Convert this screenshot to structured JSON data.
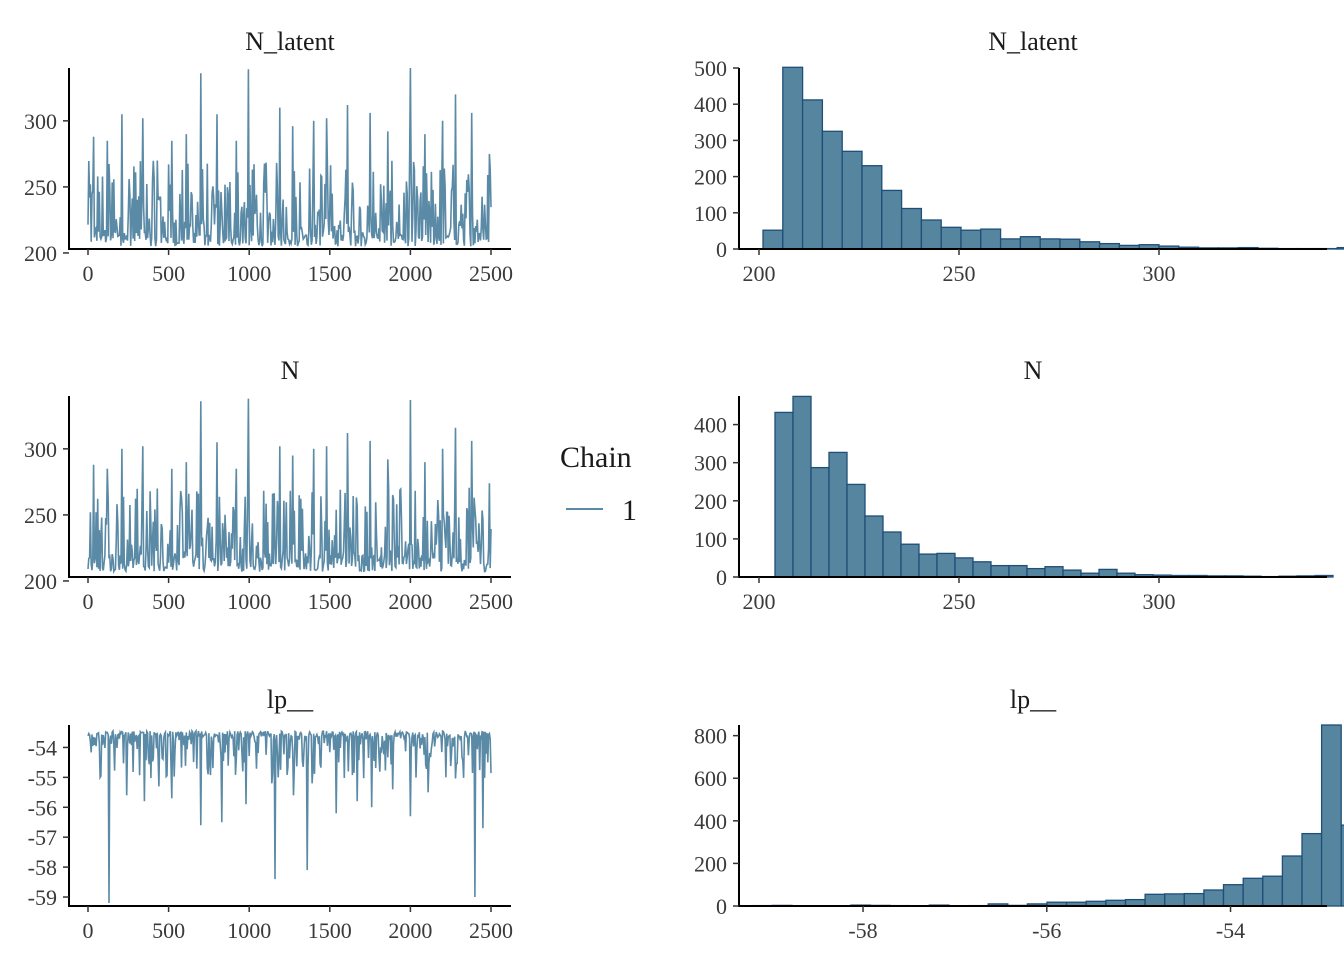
{
  "legend": {
    "title": "Chain",
    "items": [
      {
        "label": "1",
        "color": "#5b8aa6"
      }
    ]
  },
  "colors": {
    "trace": "#5b8aa6",
    "bar_fill": "#55859f",
    "bar_stroke": "#1f4e79",
    "axis": "#000000"
  },
  "chart_data": [
    {
      "id": "trace-n-latent",
      "type": "line",
      "title": "N_latent",
      "xlim": [
        0,
        2500
      ],
      "ylim": [
        203,
        340
      ],
      "xticks": [
        0,
        500,
        1000,
        1500,
        2000,
        2500
      ],
      "yticks": [
        200,
        250,
        300
      ],
      "series": [
        {
          "iterations": 2500,
          "baseline": 205,
          "spikes": [
            [
              15,
              252
            ],
            [
              35,
              288
            ],
            [
              120,
              285
            ],
            [
              210,
              305
            ],
            [
              340,
              302
            ],
            [
              430,
              270
            ],
            [
              520,
              285
            ],
            [
              610,
              290
            ],
            [
              700,
              336
            ],
            [
              800,
              305
            ],
            [
              920,
              285
            ],
            [
              995,
              339
            ],
            [
              1190,
              310
            ],
            [
              1270,
              296
            ],
            [
              1400,
              300
            ],
            [
              1480,
              302
            ],
            [
              1610,
              312
            ],
            [
              1750,
              306
            ],
            [
              1860,
              292
            ],
            [
              2000,
              340
            ],
            [
              2090,
              290
            ],
            [
              2200,
              300
            ],
            [
              2280,
              320
            ],
            [
              2380,
              306
            ],
            [
              2490,
              275
            ]
          ]
        }
      ]
    },
    {
      "id": "hist-n-latent",
      "type": "bar",
      "title": "N_latent",
      "xlim": [
        195,
        342
      ],
      "ylim": [
        0,
        500
      ],
      "xticks": [
        200,
        250,
        300
      ],
      "yticks": [
        0,
        100,
        200,
        300,
        400,
        500
      ],
      "bin_start": 201,
      "bin_width": 4.95,
      "values": [
        52,
        502,
        412,
        325,
        270,
        230,
        162,
        112,
        80,
        60,
        52,
        55,
        28,
        34,
        28,
        27,
        20,
        15,
        10,
        12,
        8,
        5,
        3,
        3,
        4,
        2,
        1,
        1,
        1,
        4
      ]
    },
    {
      "id": "trace-n",
      "type": "line",
      "title": "N",
      "xlim": [
        0,
        2500
      ],
      "ylim": [
        203,
        340
      ],
      "xticks": [
        0,
        500,
        1000,
        1500,
        2000,
        2500
      ],
      "yticks": [
        200,
        250,
        300
      ],
      "series": [
        {
          "iterations": 2500,
          "baseline": 207,
          "spikes": [
            [
              15,
              252
            ],
            [
              35,
              288
            ],
            [
              120,
              285
            ],
            [
              210,
              300
            ],
            [
              340,
              302
            ],
            [
              430,
              270
            ],
            [
              520,
              285
            ],
            [
              610,
              290
            ],
            [
              700,
              336
            ],
            [
              800,
              305
            ],
            [
              920,
              285
            ],
            [
              995,
              338
            ],
            [
              1190,
              302
            ],
            [
              1270,
              295
            ],
            [
              1400,
              300
            ],
            [
              1480,
              302
            ],
            [
              1610,
              312
            ],
            [
              1750,
              306
            ],
            [
              1860,
              292
            ],
            [
              2000,
              337
            ],
            [
              2090,
              290
            ],
            [
              2200,
              300
            ],
            [
              2280,
              316
            ],
            [
              2380,
              306
            ],
            [
              2490,
              274
            ]
          ]
        }
      ]
    },
    {
      "id": "hist-n",
      "type": "bar",
      "title": "N",
      "xlim": [
        195,
        342
      ],
      "ylim": [
        0,
        475
      ],
      "xticks": [
        200,
        250,
        300
      ],
      "yticks": [
        0,
        100,
        200,
        300,
        400
      ],
      "bin_start": 204,
      "bin_width": 4.5,
      "values": [
        432,
        474,
        287,
        327,
        243,
        160,
        118,
        86,
        60,
        62,
        50,
        40,
        30,
        30,
        22,
        27,
        18,
        10,
        20,
        10,
        6,
        5,
        4,
        4,
        3,
        3,
        2,
        1,
        2,
        3,
        4
      ]
    },
    {
      "id": "trace-lp",
      "type": "line",
      "title": "lp__",
      "xlim": [
        0,
        2500
      ],
      "ylim": [
        -59.3,
        -53.25
      ],
      "xticks": [
        0,
        500,
        1000,
        1500,
        2000,
        2500
      ],
      "yticks": [
        -54,
        -55,
        -56,
        -57,
        -58,
        -59
      ],
      "series": [
        {
          "iterations": 2500,
          "baseline": -53.45,
          "spikes": [
            [
              75,
              -55.0
            ],
            [
              130,
              -59.2
            ],
            [
              240,
              -55.6
            ],
            [
              350,
              -55.8
            ],
            [
              440,
              -55.3
            ],
            [
              520,
              -55.7
            ],
            [
              700,
              -56.6
            ],
            [
              830,
              -56.5
            ],
            [
              980,
              -55.9
            ],
            [
              1140,
              -55.2
            ],
            [
              1160,
              -58.4
            ],
            [
              1275,
              -55.6
            ],
            [
              1360,
              -58.1
            ],
            [
              1390,
              -55.2
            ],
            [
              1540,
              -56.2
            ],
            [
              1670,
              -55.8
            ],
            [
              1760,
              -56.0
            ],
            [
              1890,
              -55.4
            ],
            [
              2000,
              -56.3
            ],
            [
              2110,
              -55.5
            ],
            [
              2220,
              -55.0
            ],
            [
              2400,
              -59.0
            ],
            [
              2450,
              -56.7
            ],
            [
              2480,
              -54.5
            ]
          ]
        }
      ]
    },
    {
      "id": "hist-lp",
      "type": "bar",
      "title": "lp__",
      "xlim": [
        -59.35,
        -52.95
      ],
      "ylim": [
        0,
        850
      ],
      "xticks": [
        -58,
        -56,
        -54
      ],
      "yticks": [
        0,
        200,
        400,
        600,
        800
      ],
      "bin_start": -59.2,
      "bin_width": 0.2135,
      "values": [
        2,
        3,
        1,
        1,
        1,
        4,
        3,
        2,
        1,
        4,
        1,
        2,
        10,
        3,
        10,
        18,
        18,
        22,
        27,
        30,
        55,
        57,
        58,
        75,
        100,
        130,
        140,
        235,
        340,
        850,
        380
      ]
    }
  ]
}
